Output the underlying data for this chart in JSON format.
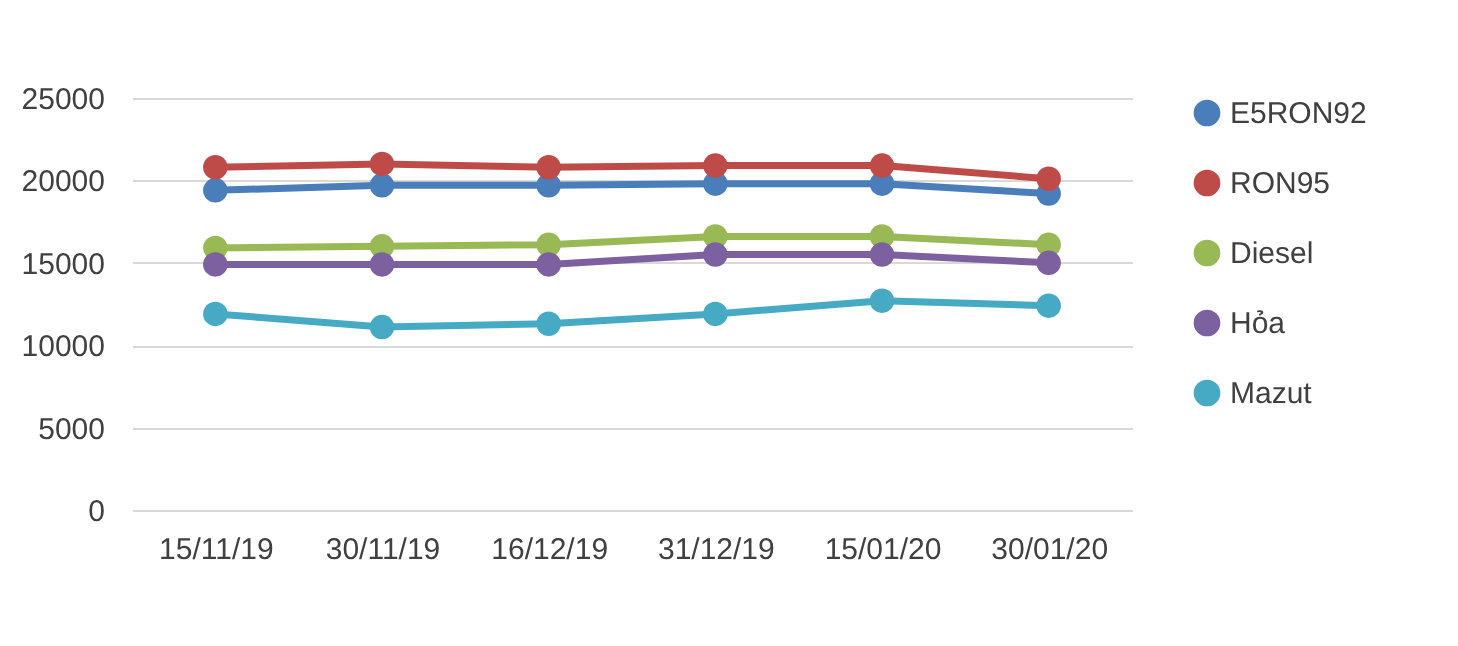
{
  "chart_data": {
    "type": "line",
    "categories": [
      "15/11/19",
      "30/11/19",
      "16/12/19",
      "31/12/19",
      "15/01/20",
      "30/01/20"
    ],
    "series": [
      {
        "name": "E5RON92",
        "color": "#4a7ebb",
        "values": [
          19400,
          19700,
          19700,
          19800,
          19800,
          19200
        ]
      },
      {
        "name": "RON95",
        "color": "#be4b48",
        "values": [
          20800,
          21000,
          20800,
          20900,
          20900,
          20100
        ]
      },
      {
        "name": "Diesel",
        "color": "#98b954",
        "values": [
          15900,
          16000,
          16100,
          16600,
          16600,
          16100
        ]
      },
      {
        "name": "Hỏa",
        "color": "#7d60a0",
        "values": [
          14900,
          14900,
          14900,
          15500,
          15500,
          15000
        ]
      },
      {
        "name": "Mazut",
        "color": "#46aac5",
        "values": [
          11900,
          11100,
          11300,
          11900,
          12700,
          12400
        ]
      }
    ],
    "ylim": [
      0,
      25000
    ],
    "yticks": [
      0,
      5000,
      10000,
      15000,
      20000,
      25000
    ],
    "grid": "y",
    "legend": "right",
    "marker": "circle",
    "line_style": "solid"
  }
}
